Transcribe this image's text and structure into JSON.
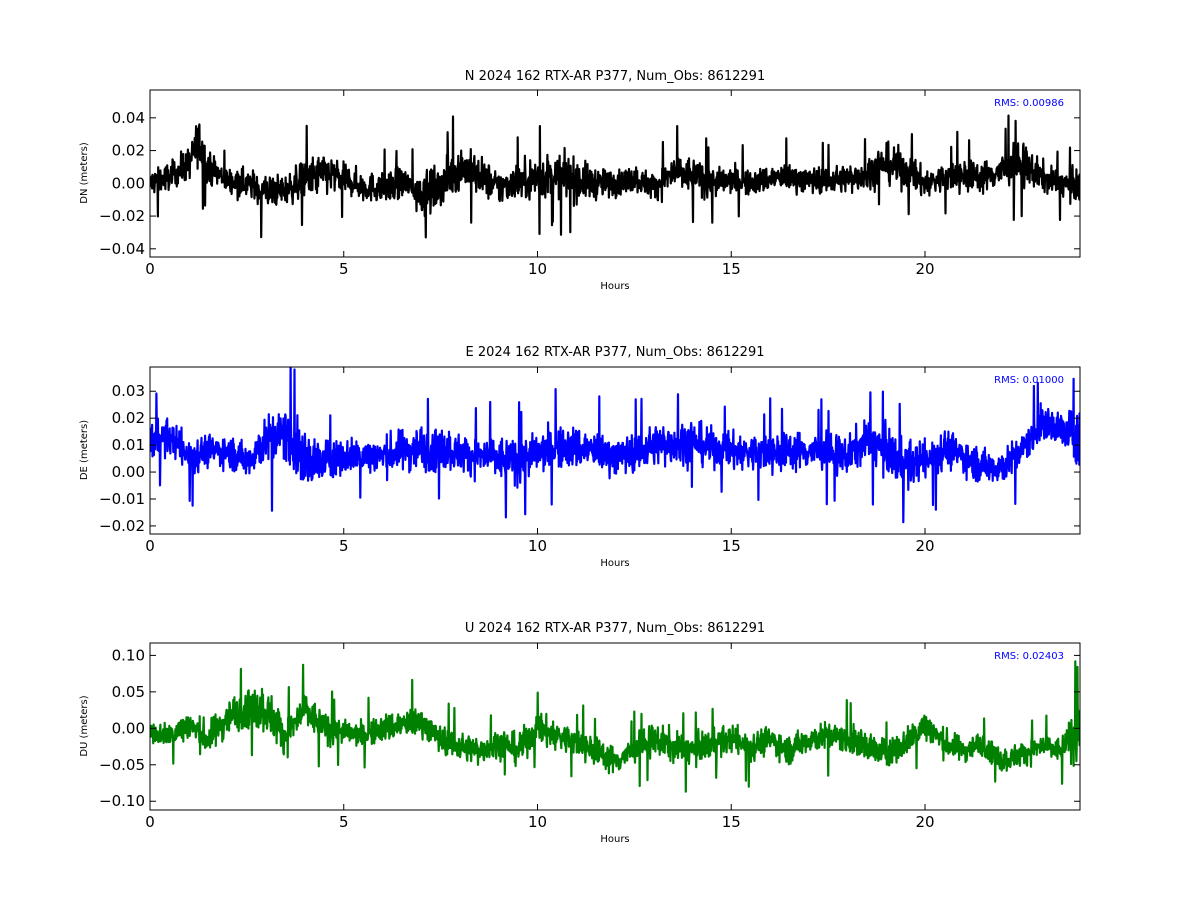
{
  "chart_data": [
    {
      "type": "line",
      "title": "N 2024 162 RTX-AR  P377, Num_Obs: 8612291",
      "xlabel": "Hours",
      "ylabel": "DN (meters)",
      "rms_label": "RMS:  0.00986",
      "color": "#000000",
      "xlim": [
        0,
        24
      ],
      "ylim": [
        -0.045,
        0.057
      ],
      "xticks": [
        0,
        5,
        10,
        15,
        20
      ],
      "yticks": [
        -0.04,
        -0.02,
        0.0,
        0.02,
        0.04
      ],
      "ytick_labels": [
        "−0.04",
        "−0.02",
        "0.00",
        "0.02",
        "0.04"
      ],
      "grid": false,
      "series": [
        {
          "x": [
            0,
            0.5,
            1.0,
            1.25,
            1.5,
            2,
            2.5,
            3,
            3.5,
            4,
            4.5,
            5,
            5.5,
            6,
            6.5,
            7,
            7.5,
            8,
            8.5,
            9,
            9.5,
            10,
            10.5,
            11,
            11.5,
            12,
            12.5,
            13,
            13.5,
            14,
            14.5,
            15,
            15.5,
            16,
            16.5,
            17,
            17.5,
            18,
            18.5,
            19,
            19.5,
            20,
            20.5,
            21,
            21.5,
            22,
            22.5,
            23,
            23.5,
            24
          ],
          "center": [
            0.0,
            0.004,
            0.012,
            0.025,
            0.01,
            0.002,
            0.0,
            -0.005,
            -0.004,
            0.002,
            0.006,
            0.003,
            -0.002,
            -0.003,
            0.0,
            -0.006,
            -0.002,
            0.01,
            0.005,
            -0.003,
            0.002,
            0.003,
            0.005,
            0.002,
            0.0,
            0.0,
            0.003,
            -0.002,
            0.006,
            0.005,
            0.0,
            0.002,
            0.0,
            0.003,
            0.004,
            0.002,
            0.002,
            0.003,
            0.006,
            0.012,
            0.008,
            0.0,
            0.003,
            0.005,
            0.004,
            0.008,
            0.012,
            0.004,
            0.0,
            -0.002
          ],
          "amplitude": [
            0.015,
            0.015,
            0.018,
            0.028,
            0.018,
            0.014,
            0.016,
            0.02,
            0.016,
            0.022,
            0.024,
            0.016,
            0.017,
            0.016,
            0.018,
            0.022,
            0.022,
            0.024,
            0.022,
            0.019,
            0.019,
            0.026,
            0.023,
            0.024,
            0.018,
            0.015,
            0.015,
            0.015,
            0.02,
            0.02,
            0.017,
            0.015,
            0.014,
            0.015,
            0.015,
            0.015,
            0.015,
            0.016,
            0.018,
            0.022,
            0.022,
            0.016,
            0.016,
            0.018,
            0.017,
            0.02,
            0.024,
            0.017,
            0.014,
            0.018
          ]
        }
      ]
    },
    {
      "type": "line",
      "title": "E 2024 162 RTX-AR  P377, Num_Obs: 8612291",
      "xlabel": "Hours",
      "ylabel": "DE (meters)",
      "rms_label": "RMS:  0.01000",
      "color": "#0000ff",
      "xlim": [
        0,
        24
      ],
      "ylim": [
        -0.023,
        0.039
      ],
      "xticks": [
        0,
        5,
        10,
        15,
        20
      ],
      "yticks": [
        -0.02,
        -0.01,
        0.0,
        0.01,
        0.02,
        0.03
      ],
      "ytick_labels": [
        "−0.02",
        "−0.01",
        "0.00",
        "0.01",
        "0.02",
        "0.03"
      ],
      "grid": false,
      "series": [
        {
          "x": [
            0,
            0.5,
            1.0,
            1.5,
            2,
            2.5,
            3,
            3.5,
            4,
            4.5,
            5,
            5.5,
            6,
            6.5,
            7,
            7.5,
            8,
            8.5,
            9,
            9.5,
            10,
            10.5,
            11,
            11.5,
            12,
            12.5,
            13,
            13.5,
            14,
            14.5,
            15,
            15.5,
            16,
            16.5,
            17,
            17.5,
            18,
            18.5,
            19,
            19.5,
            20,
            20.5,
            21,
            21.5,
            22,
            22.5,
            23,
            23.5,
            24
          ],
          "center": [
            0.012,
            0.013,
            0.006,
            0.008,
            0.008,
            0.004,
            0.012,
            0.014,
            0.004,
            0.004,
            0.006,
            0.006,
            0.006,
            0.008,
            0.009,
            0.009,
            0.007,
            0.006,
            0.005,
            0.004,
            0.007,
            0.009,
            0.009,
            0.008,
            0.006,
            0.007,
            0.01,
            0.011,
            0.011,
            0.009,
            0.008,
            0.007,
            0.007,
            0.008,
            0.008,
            0.007,
            0.006,
            0.012,
            0.008,
            0.003,
            0.004,
            0.009,
            0.006,
            0.002,
            0.002,
            0.008,
            0.018,
            0.016,
            0.012
          ],
          "amplitude": [
            0.013,
            0.012,
            0.012,
            0.011,
            0.011,
            0.012,
            0.016,
            0.02,
            0.02,
            0.014,
            0.012,
            0.012,
            0.013,
            0.014,
            0.016,
            0.015,
            0.013,
            0.013,
            0.015,
            0.015,
            0.014,
            0.014,
            0.015,
            0.013,
            0.013,
            0.013,
            0.014,
            0.015,
            0.015,
            0.013,
            0.013,
            0.013,
            0.013,
            0.013,
            0.013,
            0.013,
            0.013,
            0.014,
            0.015,
            0.016,
            0.013,
            0.013,
            0.012,
            0.012,
            0.012,
            0.011,
            0.012,
            0.012,
            0.02
          ]
        }
      ]
    },
    {
      "type": "line",
      "title": "U 2024 162 RTX-AR  P377, Num_Obs: 8612291",
      "xlabel": "Hours",
      "ylabel": "DU (meters)",
      "rms_label": "RMS:  0.02403",
      "color": "#008000",
      "xlim": [
        0,
        24
      ],
      "ylim": [
        -0.112,
        0.117
      ],
      "xticks": [
        0,
        5,
        10,
        15,
        20
      ],
      "yticks": [
        -0.1,
        -0.05,
        0.0,
        0.05,
        0.1
      ],
      "ytick_labels": [
        "−0.10",
        "−0.05",
        "0.00",
        "0.05",
        "0.10"
      ],
      "grid": false,
      "series": [
        {
          "x": [
            0,
            0.5,
            1.0,
            1.5,
            2,
            2.5,
            3,
            3.5,
            4,
            4.5,
            5,
            5.5,
            6,
            6.5,
            7,
            7.5,
            8,
            8.5,
            9,
            9.5,
            10,
            10.5,
            11,
            11.5,
            12,
            12.5,
            13,
            13.5,
            14,
            14.5,
            15,
            15.5,
            16,
            16.5,
            17,
            17.5,
            18,
            18.5,
            19,
            19.5,
            20,
            20.5,
            21,
            21.5,
            22,
            22.5,
            23,
            23.5,
            24
          ],
          "center": [
            -0.005,
            -0.01,
            0.005,
            -0.015,
            0.015,
            0.03,
            0.025,
            -0.01,
            0.025,
            0.0,
            -0.005,
            -0.01,
            0.0,
            0.005,
            0.01,
            -0.015,
            -0.025,
            -0.03,
            -0.02,
            -0.03,
            0.0,
            -0.01,
            -0.02,
            -0.03,
            -0.045,
            -0.03,
            -0.015,
            -0.025,
            -0.03,
            -0.02,
            -0.015,
            -0.025,
            -0.015,
            -0.03,
            -0.015,
            -0.01,
            -0.015,
            -0.025,
            -0.035,
            -0.02,
            0.005,
            -0.02,
            -0.03,
            -0.02,
            -0.045,
            -0.035,
            -0.025,
            -0.03,
            0.0
          ],
          "amplitude": [
            0.025,
            0.03,
            0.04,
            0.04,
            0.045,
            0.05,
            0.06,
            0.045,
            0.045,
            0.04,
            0.03,
            0.03,
            0.035,
            0.04,
            0.035,
            0.035,
            0.035,
            0.035,
            0.035,
            0.04,
            0.04,
            0.04,
            0.035,
            0.035,
            0.035,
            0.035,
            0.04,
            0.04,
            0.035,
            0.035,
            0.035,
            0.035,
            0.035,
            0.035,
            0.035,
            0.035,
            0.035,
            0.04,
            0.035,
            0.035,
            0.04,
            0.035,
            0.03,
            0.03,
            0.03,
            0.03,
            0.03,
            0.03,
            0.08
          ]
        }
      ]
    }
  ]
}
